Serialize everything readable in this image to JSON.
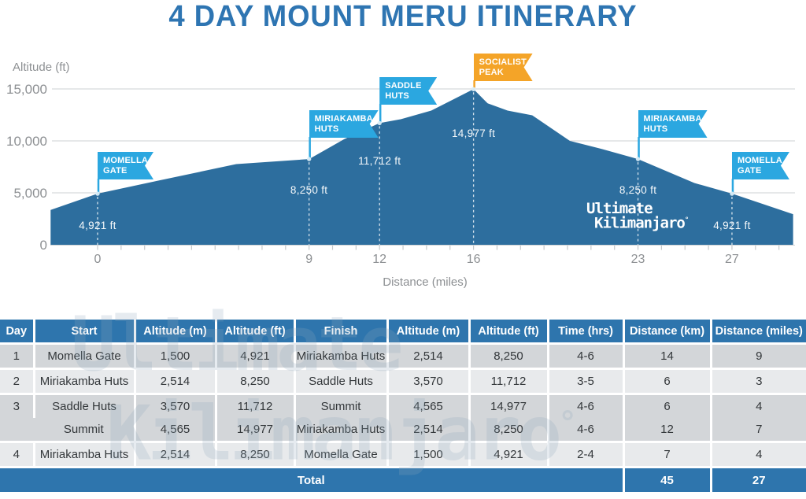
{
  "title": "4 DAY MOUNT MERU ITINERARY",
  "colors": {
    "title_blue": "#2e75b2",
    "area_blue": "#2d6e9e",
    "flag_blue": "#2ba7e0",
    "flag_orange": "#f4a428",
    "table_header_blue": "#2e75ad",
    "row_dark": "#d3d6d9",
    "row_light": "#e8eaec",
    "grid_gray": "#d8dadc",
    "axis_text_gray": "#8d9093"
  },
  "brand": {
    "line1": "Ultimate",
    "line2": "Kilimanjaro",
    "mark": "°"
  },
  "chart_data": {
    "type": "area",
    "title": "",
    "xlabel": "Distance (miles)",
    "ylabel": "Altitude (ft)",
    "xlim": [
      -2,
      30.2
    ],
    "ylim": [
      0,
      15000
    ],
    "grid": true,
    "legend": "none",
    "area_color": "#2d6e9e",
    "y_ticks": [
      {
        "value": 0,
        "label": "0"
      },
      {
        "value": 5000,
        "label": "5,000"
      },
      {
        "value": 10000,
        "label": "10,000"
      },
      {
        "value": 15000,
        "label": "15,000"
      }
    ],
    "x_ticks": [
      0,
      9,
      12,
      16,
      23,
      27
    ],
    "profile_miles_ft": [
      [
        -2.0,
        3350
      ],
      [
        0,
        4921
      ],
      [
        2.6,
        6180
      ],
      [
        5.9,
        7765
      ],
      [
        9,
        8250
      ],
      [
        10.5,
        10175
      ],
      [
        12,
        11712
      ],
      [
        12.9,
        12080
      ],
      [
        14.2,
        12920
      ],
      [
        16,
        14977
      ],
      [
        16.6,
        13615
      ],
      [
        17.45,
        12920
      ],
      [
        18.5,
        12460
      ],
      [
        20.1,
        10000
      ],
      [
        21.5,
        9200
      ],
      [
        23,
        8250
      ],
      [
        25.4,
        5950
      ],
      [
        27,
        4921
      ],
      [
        29.6,
        2950
      ]
    ],
    "stations": [
      {
        "name": "Momella Gate",
        "flag_lines": [
          "MOMELLA",
          "GATE"
        ],
        "mile": 0,
        "altitude_ft": 4921,
        "altitude_label": "4,921 ft",
        "flag_color": "#2ba7e0",
        "flag_top": 193,
        "flag_width": 71,
        "label_offset": 33
      },
      {
        "name": "Miriakamba Huts",
        "flag_lines": [
          "MIRIAKAMBA",
          "HUTS"
        ],
        "mile": 9,
        "altitude_ft": 8250,
        "altitude_label": "8,250 ft",
        "flag_color": "#2ba7e0",
        "flag_top": 140,
        "flag_width": 88,
        "label_offset": 32
      },
      {
        "name": "Saddle Huts",
        "flag_lines": [
          "SADDLE",
          "HUTS"
        ],
        "mile": 12,
        "altitude_ft": 11712,
        "altitude_label": "11,712 ft",
        "flag_color": "#2ba7e0",
        "flag_top": 98,
        "flag_width": 73,
        "label_offset": 41
      },
      {
        "name": "Socialist Peak",
        "flag_lines": [
          "SOCIALIST",
          "PEAK"
        ],
        "mile": 16,
        "altitude_ft": 14977,
        "altitude_label": "14,977 ft",
        "flag_color": "#f4a428",
        "flag_top": 68,
        "flag_width": 75,
        "label_offset": 49
      },
      {
        "name": "Miriakamba Huts",
        "flag_lines": [
          "MIRIAKAMBA",
          "HUTS"
        ],
        "mile": 23,
        "altitude_ft": 8250,
        "altitude_label": "8,250 ft",
        "flag_color": "#2ba7e0",
        "flag_top": 140,
        "flag_width": 88,
        "label_offset": 32
      },
      {
        "name": "Momella Gate",
        "flag_lines": [
          "MOMELLA",
          "GATE"
        ],
        "mile": 27,
        "altitude_ft": 4921,
        "altitude_label": "4,921 ft",
        "flag_color": "#2ba7e0",
        "flag_top": 193,
        "flag_width": 73,
        "label_offset": 33
      }
    ]
  },
  "table": {
    "headers": [
      "Day",
      "Start",
      "Altitude (m)",
      "Altitude (ft)",
      "Finish",
      "Altitude (m)",
      "Altitude (ft)",
      "Time (hrs)",
      "Distance (km)",
      "Distance (miles)"
    ],
    "rows": [
      {
        "day": "1",
        "shade": "dark",
        "merge_up": false,
        "cells": [
          "Momella Gate",
          "1,500",
          "4,921",
          "Miriakamba Huts",
          "2,514",
          "8,250",
          "4-6",
          "14",
          "9"
        ]
      },
      {
        "day": "2",
        "shade": "light",
        "merge_up": false,
        "cells": [
          "Miriakamba Huts",
          "2,514",
          "8,250",
          "Saddle Huts",
          "3,570",
          "11,712",
          "3-5",
          "6",
          "3"
        ]
      },
      {
        "day": "3",
        "shade": "dark",
        "merge_up": false,
        "day_rowspan": 2,
        "cells": [
          "Saddle Huts",
          "3,570",
          "11,712",
          "Summit",
          "4,565",
          "14,977",
          "4-6",
          "6",
          "4"
        ]
      },
      {
        "day": "",
        "shade": "dark",
        "merge_up": true,
        "cells": [
          "Summit",
          "4,565",
          "14,977",
          "Miriakamba Huts",
          "2,514",
          "8,250",
          "4-6",
          "12",
          "7"
        ]
      },
      {
        "day": "4",
        "shade": "light",
        "merge_up": false,
        "cells": [
          "Miriakamba Huts",
          "2,514",
          "8,250",
          "Momella Gate",
          "1,500",
          "4,921",
          "2-4",
          "7",
          "4"
        ]
      }
    ],
    "total": {
      "label": "Total",
      "distance_km": "45",
      "distance_miles": "27"
    }
  }
}
